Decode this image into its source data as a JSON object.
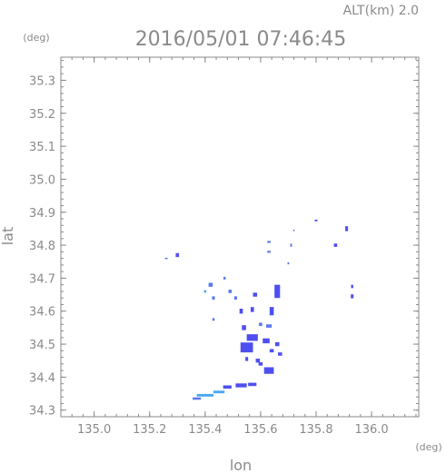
{
  "header": {
    "altitude_label": "ALT(km) 2.0",
    "timestamp": "2016/05/01 07:46:45"
  },
  "chart_data": {
    "type": "scatter",
    "xlabel": "lon",
    "ylabel": "lat",
    "x_unit": "(deg)",
    "y_unit": "(deg)",
    "xlim": [
      134.88,
      136.17
    ],
    "ylim": [
      34.28,
      35.37
    ],
    "x_ticks": [
      135.0,
      135.2,
      135.4,
      135.6,
      135.8,
      136.0
    ],
    "x_tick_labels": [
      "135.0",
      "135.2",
      "135.4",
      "135.6",
      "135.8",
      "136.0"
    ],
    "y_ticks": [
      34.3,
      34.4,
      34.5,
      34.6,
      34.7,
      34.8,
      34.9,
      35.0,
      35.1,
      35.2,
      35.3
    ],
    "y_tick_labels": [
      "34.3",
      "34.4",
      "34.5",
      "34.6",
      "34.7",
      "34.8",
      "34.9",
      "35.0",
      "35.1",
      "35.2",
      "35.3"
    ],
    "grid": false,
    "colors": {
      "strong": "#4f4ff0",
      "medium": "#5a78f0",
      "weak": "#4aa8f0",
      "axis": "#8a8a8a"
    },
    "points": [
      {
        "lon": 135.48,
        "lat": 34.37,
        "w": 0.03,
        "h": 0.01,
        "c": "strong"
      },
      {
        "lon": 135.53,
        "lat": 34.375,
        "w": 0.04,
        "h": 0.012,
        "c": "strong"
      },
      {
        "lon": 135.57,
        "lat": 34.378,
        "w": 0.03,
        "h": 0.01,
        "c": "strong"
      },
      {
        "lon": 135.4,
        "lat": 34.345,
        "w": 0.06,
        "h": 0.008,
        "c": "weak"
      },
      {
        "lon": 135.45,
        "lat": 34.355,
        "w": 0.04,
        "h": 0.008,
        "c": "weak"
      },
      {
        "lon": 135.37,
        "lat": 34.335,
        "w": 0.03,
        "h": 0.007,
        "c": "medium"
      },
      {
        "lon": 135.55,
        "lat": 34.455,
        "w": 0.01,
        "h": 0.012,
        "c": "strong"
      },
      {
        "lon": 135.59,
        "lat": 34.45,
        "w": 0.015,
        "h": 0.012,
        "c": "strong"
      },
      {
        "lon": 135.55,
        "lat": 34.49,
        "w": 0.045,
        "h": 0.03,
        "c": "strong"
      },
      {
        "lon": 135.57,
        "lat": 34.52,
        "w": 0.04,
        "h": 0.02,
        "c": "strong"
      },
      {
        "lon": 135.54,
        "lat": 34.55,
        "w": 0.015,
        "h": 0.015,
        "c": "strong"
      },
      {
        "lon": 135.53,
        "lat": 34.6,
        "w": 0.012,
        "h": 0.015,
        "c": "strong"
      },
      {
        "lon": 135.57,
        "lat": 34.605,
        "w": 0.012,
        "h": 0.015,
        "c": "strong"
      },
      {
        "lon": 135.51,
        "lat": 34.64,
        "w": 0.01,
        "h": 0.01,
        "c": "medium"
      },
      {
        "lon": 135.58,
        "lat": 34.65,
        "w": 0.015,
        "h": 0.012,
        "c": "strong"
      },
      {
        "lon": 135.66,
        "lat": 34.66,
        "w": 0.02,
        "h": 0.04,
        "c": "strong"
      },
      {
        "lon": 135.64,
        "lat": 34.6,
        "w": 0.015,
        "h": 0.025,
        "c": "strong"
      },
      {
        "lon": 135.63,
        "lat": 34.555,
        "w": 0.02,
        "h": 0.01,
        "c": "medium"
      },
      {
        "lon": 135.6,
        "lat": 34.56,
        "w": 0.012,
        "h": 0.01,
        "c": "medium"
      },
      {
        "lon": 135.62,
        "lat": 34.51,
        "w": 0.025,
        "h": 0.015,
        "c": "strong"
      },
      {
        "lon": 135.66,
        "lat": 34.5,
        "w": 0.015,
        "h": 0.012,
        "c": "strong"
      },
      {
        "lon": 135.64,
        "lat": 34.48,
        "w": 0.015,
        "h": 0.01,
        "c": "strong"
      },
      {
        "lon": 135.67,
        "lat": 34.47,
        "w": 0.015,
        "h": 0.01,
        "c": "strong"
      },
      {
        "lon": 135.6,
        "lat": 34.44,
        "w": 0.015,
        "h": 0.01,
        "c": "strong"
      },
      {
        "lon": 135.63,
        "lat": 34.42,
        "w": 0.035,
        "h": 0.02,
        "c": "strong"
      },
      {
        "lon": 135.42,
        "lat": 34.68,
        "w": 0.015,
        "h": 0.012,
        "c": "medium"
      },
      {
        "lon": 135.43,
        "lat": 34.64,
        "w": 0.01,
        "h": 0.01,
        "c": "medium"
      },
      {
        "lon": 135.4,
        "lat": 34.66,
        "w": 0.008,
        "h": 0.008,
        "c": "weak"
      },
      {
        "lon": 135.43,
        "lat": 34.575,
        "w": 0.008,
        "h": 0.008,
        "c": "medium"
      },
      {
        "lon": 135.49,
        "lat": 34.66,
        "w": 0.012,
        "h": 0.01,
        "c": "medium"
      },
      {
        "lon": 135.47,
        "lat": 34.7,
        "w": 0.008,
        "h": 0.008,
        "c": "medium"
      },
      {
        "lon": 135.3,
        "lat": 34.77,
        "w": 0.012,
        "h": 0.012,
        "c": "strong"
      },
      {
        "lon": 135.26,
        "lat": 34.76,
        "w": 0.01,
        "h": 0.004,
        "c": "medium"
      },
      {
        "lon": 135.63,
        "lat": 34.81,
        "w": 0.012,
        "h": 0.006,
        "c": "medium"
      },
      {
        "lon": 135.63,
        "lat": 34.78,
        "w": 0.012,
        "h": 0.006,
        "c": "medium"
      },
      {
        "lon": 135.71,
        "lat": 34.8,
        "w": 0.006,
        "h": 0.01,
        "c": "medium"
      },
      {
        "lon": 135.72,
        "lat": 34.845,
        "w": 0.005,
        "h": 0.005,
        "c": "medium"
      },
      {
        "lon": 135.7,
        "lat": 34.745,
        "w": 0.006,
        "h": 0.006,
        "c": "medium"
      },
      {
        "lon": 135.8,
        "lat": 34.875,
        "w": 0.01,
        "h": 0.005,
        "c": "strong"
      },
      {
        "lon": 135.91,
        "lat": 34.85,
        "w": 0.01,
        "h": 0.015,
        "c": "strong"
      },
      {
        "lon": 135.87,
        "lat": 34.8,
        "w": 0.012,
        "h": 0.01,
        "c": "strong"
      },
      {
        "lon": 135.93,
        "lat": 34.675,
        "w": 0.008,
        "h": 0.01,
        "c": "strong"
      },
      {
        "lon": 135.93,
        "lat": 34.645,
        "w": 0.01,
        "h": 0.012,
        "c": "strong"
      }
    ]
  }
}
